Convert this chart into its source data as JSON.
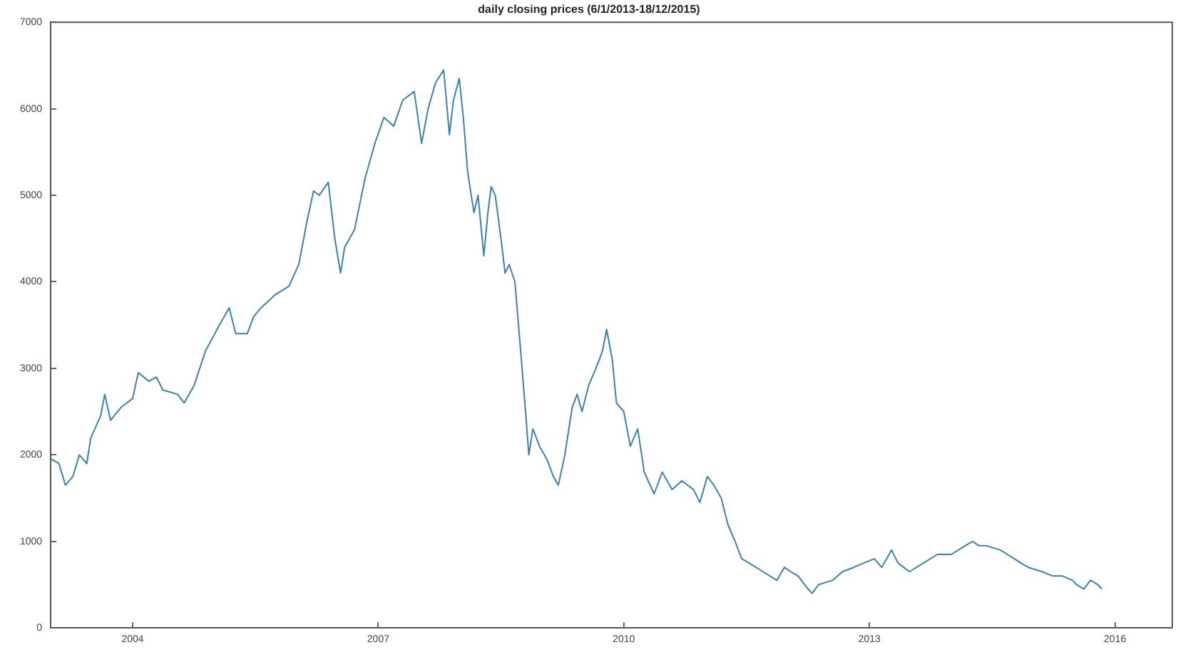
{
  "chart_data": {
    "type": "line",
    "title": "daily closing prices (6/1/2013-18/12/2015)",
    "xlim": [
      2003,
      2016.7
    ],
    "xticks": [
      2004,
      2007,
      2010,
      2013,
      2016
    ],
    "ylim": [
      0,
      7000
    ],
    "yticks": [
      0,
      1000,
      2000,
      3000,
      4000,
      5000,
      6000,
      7000
    ],
    "grid": false,
    "legend": false,
    "marker": "none",
    "line_style": "solid",
    "series": [
      {
        "color": "#3b82b0",
        "x": [
          2003.01,
          2003.1,
          2003.18,
          2003.27,
          2003.35,
          2003.44,
          2003.49,
          2003.61,
          2003.66,
          2003.73,
          2003.86,
          2004.0,
          2004.07,
          2004.2,
          2004.29,
          2004.37,
          2004.55,
          2004.63,
          2004.75,
          2004.89,
          2005.06,
          2005.18,
          2005.26,
          2005.4,
          2005.48,
          2005.57,
          2005.74,
          2005.91,
          2006.03,
          2006.13,
          2006.21,
          2006.28,
          2006.39,
          2006.47,
          2006.54,
          2006.59,
          2006.71,
          2006.84,
          2006.96,
          2007.07,
          2007.19,
          2007.3,
          2007.44,
          2007.53,
          2007.61,
          2007.7,
          2007.8,
          2007.87,
          2007.92,
          2007.99,
          2008.04,
          2008.09,
          2008.12,
          2008.17,
          2008.22,
          2008.29,
          2008.34,
          2008.38,
          2008.43,
          2008.5,
          2008.55,
          2008.6,
          2008.67,
          2008.74,
          2008.8,
          2008.84,
          2008.89,
          2008.97,
          2009.06,
          2009.14,
          2009.2,
          2009.28,
          2009.37,
          2009.43,
          2009.49,
          2009.57,
          2009.66,
          2009.74,
          2009.79,
          2009.86,
          2009.91,
          2010.0,
          2010.08,
          2010.17,
          2010.25,
          2010.37,
          2010.47,
          2010.59,
          2010.71,
          2010.85,
          2010.93,
          2011.02,
          2011.1,
          2011.19,
          2011.27,
          2011.36,
          2011.44,
          2011.53,
          2011.7,
          2011.87,
          2011.96,
          2012.04,
          2012.13,
          2012.25,
          2012.3,
          2012.38,
          2012.55,
          2012.67,
          2012.81,
          2012.93,
          2013.06,
          2013.15,
          2013.27,
          2013.35,
          2013.49,
          2013.66,
          2013.83,
          2014.0,
          2014.17,
          2014.26,
          2014.34,
          2014.43,
          2014.6,
          2014.77,
          2014.85,
          2014.94,
          2015.11,
          2015.24,
          2015.36,
          2015.48,
          2015.53,
          2015.62,
          2015.7,
          2015.79,
          2015.84
        ],
        "values": [
          1950,
          1900,
          1650,
          1750,
          2000,
          1900,
          2200,
          2450,
          2700,
          2400,
          2550,
          2650,
          2950,
          2850,
          2900,
          2750,
          2700,
          2600,
          2800,
          3200,
          3500,
          3700,
          3400,
          3400,
          3600,
          3700,
          3850,
          3950,
          4200,
          4700,
          5050,
          5000,
          5150,
          4500,
          4100,
          4400,
          4600,
          5200,
          5600,
          5900,
          5800,
          6100,
          6200,
          5600,
          6000,
          6300,
          6450,
          5700,
          6100,
          6350,
          5900,
          5300,
          5100,
          4800,
          5000,
          4300,
          4800,
          5100,
          5000,
          4500,
          4100,
          4200,
          4000,
          3200,
          2500,
          2000,
          2300,
          2100,
          1950,
          1750,
          1650,
          2000,
          2550,
          2700,
          2500,
          2800,
          3000,
          3200,
          3450,
          3100,
          2600,
          2500,
          2100,
          2300,
          1800,
          1550,
          1800,
          1600,
          1700,
          1600,
          1450,
          1750,
          1650,
          1500,
          1200,
          1000,
          800,
          750,
          650,
          550,
          700,
          650,
          600,
          450,
          400,
          500,
          550,
          650,
          700,
          750,
          800,
          700,
          900,
          750,
          650,
          750,
          850,
          850,
          950,
          1000,
          950,
          950,
          900,
          800,
          750,
          700,
          650,
          600,
          600,
          550,
          500,
          450,
          550,
          500,
          450
        ]
      }
    ]
  }
}
